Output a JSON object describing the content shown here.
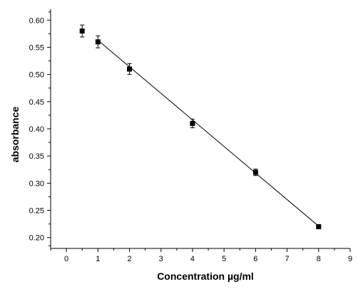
{
  "chart_data": {
    "type": "scatter",
    "xlabel": "Concentration µg/ml",
    "ylabel": "absorbance",
    "xlim": [
      -0.5,
      9
    ],
    "ylim": [
      0.18,
      0.62
    ],
    "xticks": [
      0,
      1,
      2,
      3,
      4,
      5,
      6,
      7,
      8,
      9
    ],
    "yticks": [
      0.2,
      0.25,
      0.3,
      0.35,
      0.4,
      0.45,
      0.5,
      0.55,
      0.6
    ],
    "xtick_labels": [
      "0",
      "1",
      "2",
      "3",
      "4",
      "5",
      "6",
      "7",
      "8",
      "9"
    ],
    "ytick_labels": [
      "0.20",
      "0.25",
      "0.30",
      "0.35",
      "0.40",
      "0.45",
      "0.50",
      "0.55",
      "0.60"
    ],
    "series": [
      {
        "x": [
          0.5,
          1,
          2,
          4,
          6,
          8
        ],
        "y": [
          0.58,
          0.56,
          0.51,
          0.41,
          0.32,
          0.22
        ],
        "error": [
          0.011,
          0.011,
          0.01,
          0.008,
          0.006,
          0.004
        ],
        "marker": "square",
        "color": "#000000"
      }
    ],
    "fit_line": {
      "x": [
        1,
        8
      ],
      "y": [
        0.563,
        0.221
      ]
    },
    "grid": false,
    "legend": "none"
  }
}
